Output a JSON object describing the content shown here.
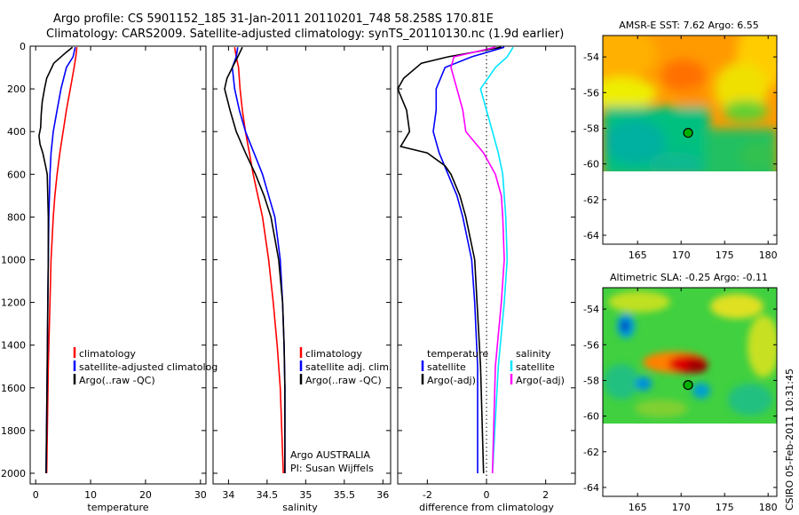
{
  "title_line1": "Argo profile: CS 5901152_185 31-Jan-2011 20110201_748 58.258S 170.81E",
  "title_line2": "Climatology: CARS2009. Satellite-adjusted climatology: synTS_20110130.nc (1.9d earlier)",
  "credit": "Argo AUSTRALIA",
  "pi": "PI: Susan Wijffels",
  "stamp": "CSIRO 05-Feb-2011 10:31:45",
  "colors": {
    "red": "#ff0000",
    "blue": "#0000ff",
    "black": "#000000",
    "cyan": "#00e5ff",
    "magenta": "#ff00ff"
  },
  "chart_data": [
    {
      "type": "line",
      "xlabel": "temperature",
      "xlim": [
        -1,
        31
      ],
      "ylim": [
        2050,
        0
      ],
      "xticks": [
        0,
        10,
        20,
        30
      ],
      "yticks": [
        0,
        200,
        400,
        600,
        800,
        1000,
        1200,
        1400,
        1600,
        1800,
        2000
      ],
      "legend": [
        "climatology",
        "satellite-adjusted climatolog",
        "Argo(..raw -QC)"
      ],
      "series": [
        {
          "name": "climatology",
          "color": "red",
          "depth": [
            5,
            50,
            100,
            200,
            300,
            400,
            500,
            600,
            700,
            800,
            1000,
            1200,
            1500,
            2000
          ],
          "values": [
            7.5,
            7.3,
            7.0,
            6.3,
            5.6,
            5.0,
            4.4,
            3.9,
            3.5,
            3.2,
            2.8,
            2.6,
            2.3,
            2.0
          ]
        },
        {
          "name": "satellite-adjusted climatolog",
          "color": "blue",
          "depth": [
            5,
            50,
            100,
            200,
            300,
            400,
            500,
            600,
            700,
            800,
            1000,
            1200,
            1500,
            2000
          ],
          "values": [
            7.2,
            6.8,
            5.6,
            4.6,
            3.9,
            3.2,
            2.8,
            2.6,
            2.5,
            2.4,
            2.3,
            2.2,
            2.1,
            1.9
          ]
        },
        {
          "name": "Argo(..raw -QC)",
          "color": "black",
          "depth": [
            5,
            30,
            80,
            150,
            200,
            260,
            320,
            380,
            420,
            460,
            500,
            560,
            600,
            800,
            1000,
            1500,
            2000
          ],
          "values": [
            6.7,
            5.5,
            3.3,
            2.0,
            1.6,
            1.2,
            1.0,
            0.9,
            0.6,
            0.8,
            1.3,
            1.8,
            2.1,
            2.3,
            2.3,
            2.1,
            1.9
          ]
        }
      ]
    },
    {
      "type": "line",
      "xlabel": "salinity",
      "xlim": [
        33.8,
        36.1
      ],
      "ylim": [
        2050,
        0
      ],
      "xticks": [
        34,
        34.5,
        35,
        35.5,
        36
      ],
      "legend": [
        "climatology",
        "satellite adj. clim.",
        "Argo(..raw -QC)"
      ],
      "series": [
        {
          "name": "climatology",
          "color": "red",
          "depth": [
            5,
            50,
            100,
            200,
            300,
            400,
            500,
            600,
            700,
            800,
            1000,
            1200,
            1400,
            1600,
            2000
          ],
          "values": [
            34.08,
            34.1,
            34.13,
            34.15,
            34.18,
            34.22,
            34.27,
            34.32,
            34.38,
            34.44,
            34.52,
            34.58,
            34.63,
            34.67,
            34.71
          ]
        },
        {
          "name": "satellite adj. clim.",
          "color": "blue",
          "depth": [
            5,
            50,
            100,
            200,
            300,
            400,
            500,
            600,
            700,
            800,
            1000,
            1200,
            1400,
            1600,
            2000
          ],
          "values": [
            34.12,
            34.1,
            34.05,
            34.08,
            34.14,
            34.22,
            34.33,
            34.44,
            34.52,
            34.6,
            34.67,
            34.7,
            34.72,
            34.73,
            34.73
          ]
        },
        {
          "name": "Argo(..raw -QC)",
          "color": "black",
          "depth": [
            5,
            50,
            100,
            150,
            200,
            300,
            400,
            500,
            600,
            700,
            800,
            1000,
            1200,
            1400,
            1600,
            2000
          ],
          "values": [
            34.18,
            34.12,
            34.05,
            33.98,
            33.95,
            34.02,
            34.1,
            34.22,
            34.35,
            34.46,
            34.55,
            34.65,
            34.7,
            34.72,
            34.73,
            34.73
          ]
        }
      ]
    },
    {
      "type": "line",
      "xlabel": "difference from climatology",
      "xlim": [
        -3,
        3
      ],
      "ylim": [
        2050,
        0
      ],
      "xticks": [
        -2,
        0,
        2
      ],
      "legend": [
        "temperature",
        "satellite",
        "Argo(-adj)",
        "salinity",
        "satellite",
        "Argo(-adj)"
      ],
      "series": [
        {
          "name": "temperature satellite",
          "color": "blue",
          "depth": [
            5,
            50,
            100,
            200,
            300,
            400,
            500,
            600,
            700,
            800,
            1000,
            1200,
            1500,
            2000
          ],
          "values": [
            0.6,
            -0.5,
            -1.4,
            -1.7,
            -1.7,
            -1.8,
            -1.6,
            -1.3,
            -1.0,
            -0.8,
            -0.5,
            -0.4,
            -0.3,
            -0.3
          ]
        },
        {
          "name": "temperature Argo(-adj)",
          "color": "black",
          "depth": [
            5,
            50,
            80,
            150,
            200,
            300,
            400,
            470,
            500,
            560,
            600,
            700,
            800,
            1000,
            1500,
            2000
          ],
          "values": [
            0.5,
            -1.3,
            -2.2,
            -2.8,
            -3.0,
            -2.7,
            -2.6,
            -2.9,
            -2.0,
            -1.4,
            -1.2,
            -0.9,
            -0.7,
            -0.4,
            -0.2,
            -0.1
          ]
        },
        {
          "name": "salinity satellite",
          "color": "cyan",
          "depth": [
            5,
            50,
            100,
            200,
            300,
            400,
            500,
            600,
            700,
            800,
            1000,
            1200,
            1500,
            2000
          ],
          "values": [
            0.9,
            0.7,
            0.3,
            -0.2,
            0.0,
            0.2,
            0.4,
            0.55,
            0.6,
            0.65,
            0.7,
            0.6,
            0.4,
            0.2
          ]
        },
        {
          "name": "salinity Argo(-adj)",
          "color": "magenta",
          "depth": [
            5,
            50,
            100,
            200,
            300,
            400,
            500,
            600,
            700,
            800,
            1000,
            1200,
            1500,
            2000
          ],
          "values": [
            0.3,
            -1.1,
            -1.2,
            -1.0,
            -0.8,
            -0.7,
            -0.1,
            0.3,
            0.5,
            0.55,
            0.6,
            0.5,
            0.3,
            0.2
          ]
        }
      ]
    },
    {
      "type": "heatmap",
      "title": "AMSR-E SST: 7.62 Argo: 6.55",
      "xlim": [
        161,
        181
      ],
      "ylim": [
        -64.5,
        -52.8
      ],
      "xticks": [
        165,
        170,
        175,
        180
      ],
      "yticks": [
        -54,
        -56,
        -58,
        -60,
        -62,
        -64
      ],
      "data_ylim": [
        -60.1,
        -52.8
      ],
      "argo_point": [
        170.81,
        -58.258
      ]
    },
    {
      "type": "heatmap",
      "title": "Altimetric SLA: -0.25 Argo: -0.11",
      "xlim": [
        161,
        181
      ],
      "ylim": [
        -64.5,
        -52.8
      ],
      "xticks": [
        165,
        170,
        175,
        180
      ],
      "yticks": [
        -54,
        -56,
        -58,
        -60,
        -62,
        -64
      ],
      "data_ylim": [
        -60.1,
        -52.8
      ],
      "argo_point": [
        170.81,
        -58.258
      ]
    }
  ]
}
